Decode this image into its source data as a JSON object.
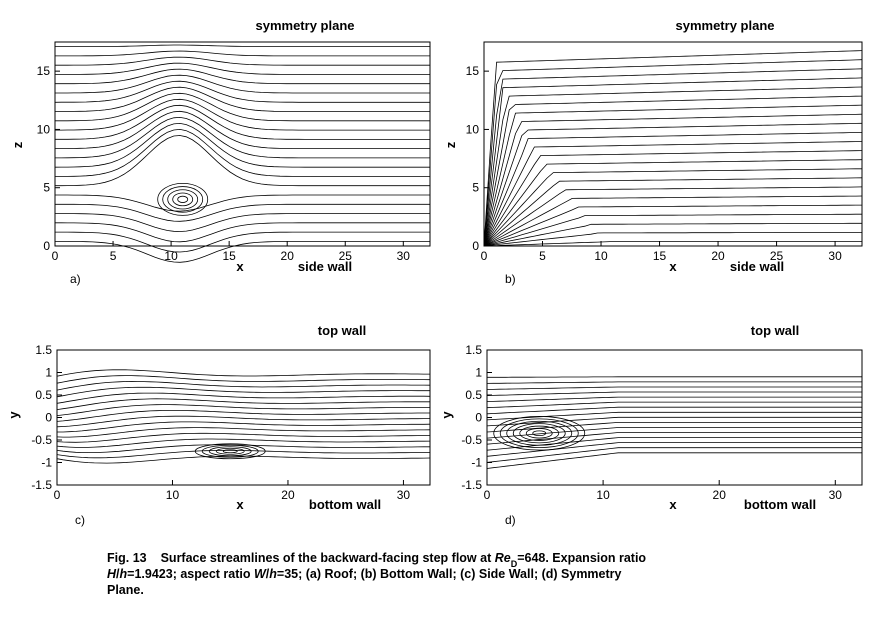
{
  "panels": [
    {
      "top_label": "symmetry plane",
      "bottom_label": "side wall",
      "x_label": "x",
      "y_label": "z",
      "tag": "a)",
      "xlim": [
        0,
        32.3
      ],
      "ylim": [
        0,
        17.5
      ],
      "xticks": [
        0,
        5,
        10,
        15,
        20,
        25,
        30
      ],
      "yticks": [
        0,
        5,
        10,
        15
      ]
    },
    {
      "top_label": "symmetry plane",
      "bottom_label": "side wall",
      "x_label": "x",
      "y_label": "z",
      "tag": "b)",
      "xlim": [
        0,
        32.3
      ],
      "ylim": [
        0,
        17.5
      ],
      "xticks": [
        0,
        5,
        10,
        15,
        20,
        25,
        30
      ],
      "yticks": [
        0,
        5,
        10,
        15
      ]
    },
    {
      "top_label": "top wall",
      "bottom_label": "bottom wall",
      "x_label": "x",
      "y_label": "y",
      "tag": "c)",
      "xlim": [
        0,
        32.3
      ],
      "ylim": [
        -1.5,
        1.5
      ],
      "xticks": [
        0,
        10,
        20,
        30
      ],
      "yticks": [
        -1.5,
        -1,
        -0.5,
        0,
        0.5,
        1,
        1.5
      ]
    },
    {
      "top_label": "top wall",
      "bottom_label": "bottom wall",
      "x_label": "x",
      "y_label": "y",
      "tag": "d)",
      "xlim": [
        0,
        32.3
      ],
      "ylim": [
        -1.5,
        1.5
      ],
      "xticks": [
        0,
        10,
        20,
        30
      ],
      "yticks": [
        -1.5,
        -1,
        -0.5,
        0,
        0.5,
        1,
        1.5
      ]
    }
  ],
  "caption": {
    "lines": [
      [
        "Fig. 13",
        "Surface streamlines of the backward-facing step flow at ",
        "Re",
        "D",
        "=648. Expansion ratio"
      ],
      [
        "H",
        "/",
        "h",
        "=1.9423; aspect ratio ",
        "W",
        "/",
        "h",
        "=35; (a) Roof; (b) Bottom Wall; (c) Side Wall; (d) Symmetry"
      ],
      [
        "Plane."
      ]
    ]
  }
}
